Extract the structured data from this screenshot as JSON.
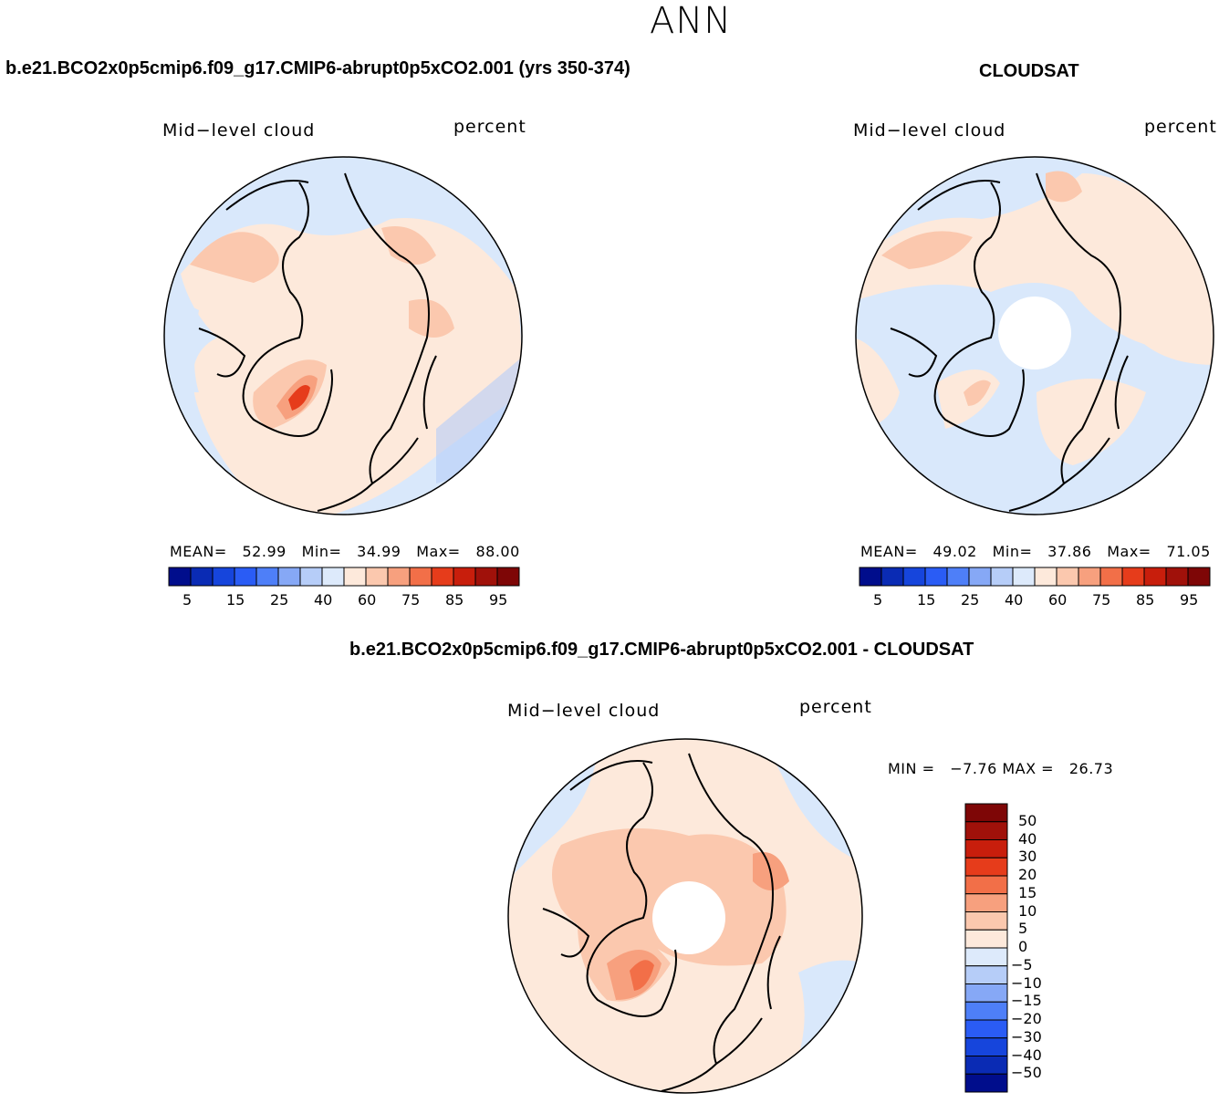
{
  "season": "ANN",
  "panels": [
    {
      "title": "b.e21.BCO2x0p5cmip6.f09_g17.CMIP6-abrupt0p5xCO2.001 (yrs 350-374)",
      "variable": "Mid−level cloud",
      "units": "percent",
      "stats": {
        "mean_label": "MEAN=",
        "mean": "52.99",
        "min_label": "Min=",
        "min": "34.99",
        "max_label": "Max=",
        "max": "88.00"
      },
      "has_pole_hole": false
    },
    {
      "title": "CLOUDSAT",
      "variable": "Mid−level cloud",
      "units": "percent",
      "stats": {
        "mean_label": "MEAN=",
        "mean": "49.02",
        "min_label": "Min=",
        "min": "37.86",
        "max_label": "Max=",
        "max": "71.05"
      },
      "has_pole_hole": true
    },
    {
      "title": "b.e21.BCO2x0p5cmip6.f09_g17.CMIP6-abrupt0p5xCO2.001 - CLOUDSAT",
      "variable": "Mid−level cloud",
      "units": "percent",
      "stats": {
        "min_label": "MIN =",
        "min": "−7.76",
        "max_label": "MAX =",
        "max": "26.73"
      },
      "has_pole_hole": true
    }
  ],
  "colorbar_field": {
    "colors": [
      "#000d8c",
      "#0a2bb4",
      "#1645dc",
      "#2a5cf5",
      "#4e7ff8",
      "#86a8f6",
      "#b6cdf8",
      "#ddeafb",
      "#fde9db",
      "#fbc8ae",
      "#f7a07e",
      "#f26f48",
      "#e63c1b",
      "#c81e0c",
      "#a0110a",
      "#7e0606"
    ],
    "labels": [
      "5",
      "15",
      "25",
      "40",
      "60",
      "75",
      "85",
      "95"
    ]
  },
  "colorbar_diff": {
    "colors": [
      "#000d8c",
      "#0a2bb4",
      "#1645dc",
      "#2a5cf5",
      "#4e7ff8",
      "#86a8f6",
      "#b6cdf8",
      "#ddeafb",
      "#fde9db",
      "#fbc8ae",
      "#f7a07e",
      "#f26f48",
      "#e63c1b",
      "#c81e0c",
      "#a0110a",
      "#7e0606"
    ],
    "labels": [
      "50",
      "40",
      "30",
      "20",
      "15",
      "10",
      "5",
      "0",
      "−5",
      "−10",
      "−15",
      "−20",
      "−30",
      "−40",
      "−50"
    ]
  }
}
